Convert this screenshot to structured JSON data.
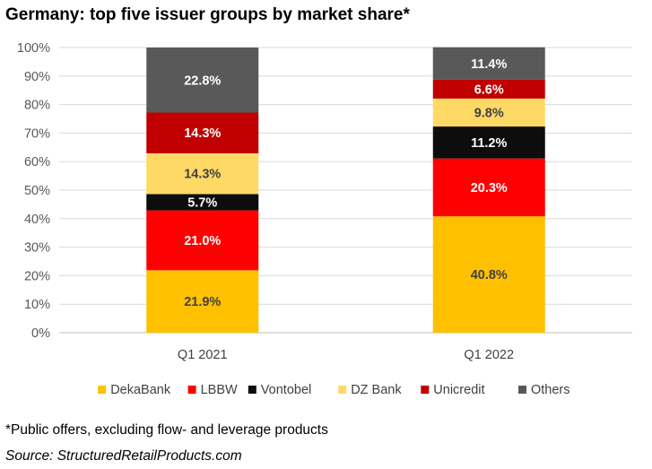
{
  "title": "Germany: top five issuer groups by market share*",
  "footnote": "*Public offers, excluding flow- and leverage products",
  "source": "Source: StructuredRetailProducts.com",
  "chart_data": {
    "type": "bar",
    "stacked": true,
    "title": "Germany: top five issuer groups by market share*",
    "categories": [
      "Q1 2021",
      "Q1 2022"
    ],
    "series": [
      {
        "name": "DekaBank",
        "color": "#FFC000",
        "values": [
          21.9,
          40.8
        ],
        "labels": [
          "21.9%",
          "40.8%"
        ]
      },
      {
        "name": "LBBW",
        "color": "#FF0000",
        "values": [
          21.0,
          20.3
        ],
        "labels": [
          "21.0%",
          "20.3%"
        ]
      },
      {
        "name": "Vontobel",
        "color": "#0D0D0D",
        "values": [
          5.7,
          11.2
        ],
        "labels": [
          "5.7%",
          "11.2%"
        ]
      },
      {
        "name": "DZ Bank",
        "color": "#FFD966",
        "values": [
          14.3,
          9.8
        ],
        "labels": [
          "14.3%",
          "9.8%"
        ]
      },
      {
        "name": "Unicredit",
        "color": "#C00000",
        "values": [
          14.3,
          6.6
        ],
        "labels": [
          "14.3%",
          "6.6%"
        ]
      },
      {
        "name": "Others",
        "color": "#595959",
        "values": [
          22.8,
          11.4
        ],
        "labels": [
          "22.8%",
          "11.4%"
        ]
      }
    ],
    "ylim": [
      0,
      100
    ],
    "yticks": [
      "0%",
      "10%",
      "20%",
      "30%",
      "40%",
      "50%",
      "60%",
      "70%",
      "80%",
      "90%",
      "100%"
    ],
    "grid": true,
    "legend": "bottom"
  }
}
